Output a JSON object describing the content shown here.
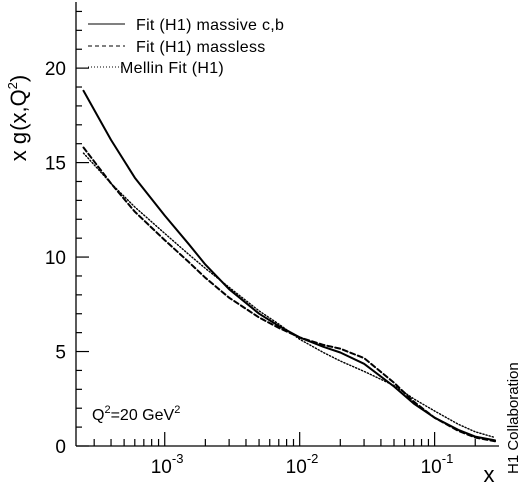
{
  "chart_data": {
    "type": "line",
    "title": "",
    "xlabel": "x",
    "ylabel_parts": {
      "prefix": "x g",
      "open": "(",
      "arg": "x,Q",
      "arg_sup": "2",
      "close": ")"
    },
    "x_scale": "log",
    "xlim": [
      0.00022,
      0.3
    ],
    "ylim": [
      0,
      23.5
    ],
    "y_ticks": [
      0,
      5,
      10,
      15,
      20
    ],
    "x_ticks": [
      {
        "value": 0.001,
        "base": "10",
        "exp": "-3"
      },
      {
        "value": 0.01,
        "base": "10",
        "exp": "-2"
      },
      {
        "value": 0.1,
        "base": "10",
        "exp": "-1"
      }
    ],
    "grid": false,
    "legend_position": "top-center",
    "annotation": {
      "label": "Q",
      "sup1": "2",
      "mid": "=20 GeV",
      "sup2": "2"
    },
    "side_label": "H1 Collaboration",
    "series": [
      {
        "name": "Fit (H1) massive c,b",
        "style": "solid",
        "width": 2,
        "x": [
          0.00025,
          0.0004,
          0.0006,
          0.001,
          0.0015,
          0.002,
          0.003,
          0.005,
          0.007,
          0.01,
          0.015,
          0.02,
          0.03,
          0.05,
          0.07,
          0.1,
          0.15,
          0.2,
          0.28
        ],
        "y": [
          18.8,
          16.2,
          14.2,
          12.2,
          10.7,
          9.6,
          8.3,
          7.0,
          6.35,
          5.75,
          5.25,
          4.95,
          4.35,
          3.15,
          2.25,
          1.5,
          0.85,
          0.5,
          0.3
        ]
      },
      {
        "name": "Fit (H1) massless",
        "style": "dashed",
        "width": 2,
        "x": [
          0.00025,
          0.0004,
          0.0006,
          0.001,
          0.0015,
          0.002,
          0.003,
          0.005,
          0.007,
          0.01,
          0.015,
          0.02,
          0.03,
          0.05,
          0.07,
          0.1,
          0.15,
          0.2,
          0.28
        ],
        "y": [
          15.8,
          13.9,
          12.4,
          10.9,
          9.75,
          8.9,
          7.85,
          6.8,
          6.25,
          5.75,
          5.35,
          5.15,
          4.65,
          3.35,
          2.35,
          1.5,
          0.8,
          0.45,
          0.25
        ]
      },
      {
        "name": "Mellin Fit (H1)",
        "style": "dotted",
        "width": 1.4,
        "x": [
          0.00025,
          0.0004,
          0.0006,
          0.001,
          0.0015,
          0.002,
          0.003,
          0.005,
          0.007,
          0.01,
          0.015,
          0.02,
          0.03,
          0.05,
          0.07,
          0.1,
          0.15,
          0.2,
          0.28
        ],
        "y": [
          15.5,
          13.9,
          12.65,
          11.25,
          10.15,
          9.4,
          8.4,
          7.15,
          6.45,
          5.65,
          4.95,
          4.5,
          3.95,
          3.2,
          2.5,
          1.85,
          1.15,
          0.75,
          0.45
        ]
      }
    ]
  }
}
